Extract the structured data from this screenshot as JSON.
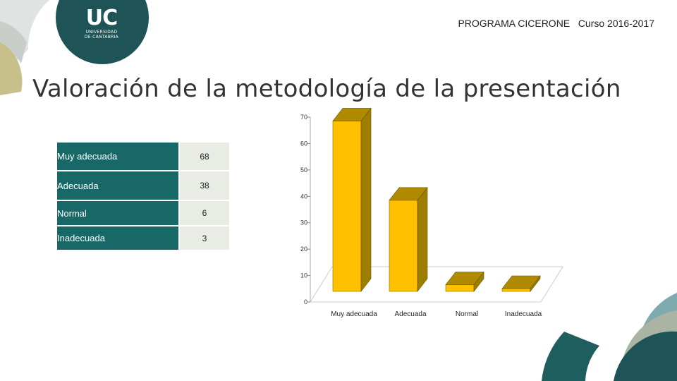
{
  "logo": {
    "short": "UC",
    "line1": "UNIVERSIDAD",
    "line2": "DE CANTABRIA"
  },
  "header": {
    "program": "PROGRAMA CICERONE   Curso 2016-2017"
  },
  "title": "Valoración de la metodología de la presentación",
  "table": {
    "rows": [
      {
        "label": "Muy adecuada",
        "value": "68"
      },
      {
        "label": "Adecuada",
        "value": "38"
      },
      {
        "label": "Normal",
        "value": "6"
      },
      {
        "label": "Inadecuada",
        "value": "3"
      }
    ]
  },
  "chart_data": {
    "type": "bar",
    "categories": [
      "Muy adecuada",
      "Adecuada",
      "Normal",
      "Inadecuada"
    ],
    "values": [
      68,
      38,
      6,
      3
    ],
    "yticks": [
      0,
      10,
      20,
      30,
      40,
      50,
      60,
      70
    ],
    "ylim": [
      0,
      70
    ],
    "bar_color": "#ffc000",
    "three_d": true,
    "grid": false
  },
  "colors": {
    "teal": "#186868",
    "bar": "#ffc000",
    "bar_dark": "#9e7e00",
    "bar_top": "#b08a00"
  }
}
